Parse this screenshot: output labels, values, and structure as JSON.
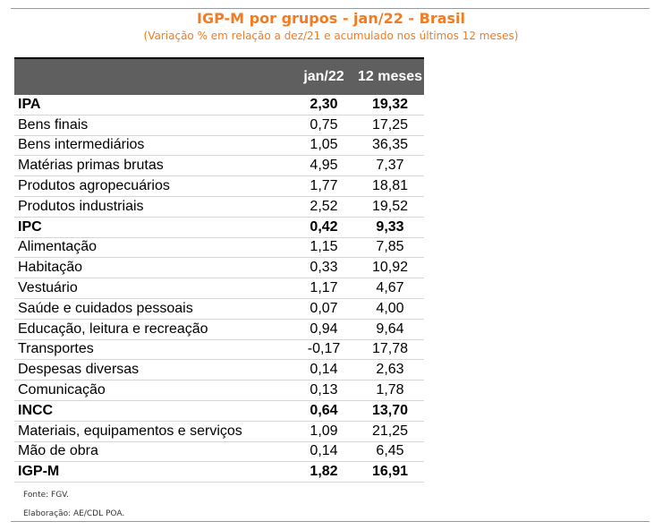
{
  "header": {
    "title": "IGP-M por grupos - jan/22 - Brasil",
    "subtitle": "(Variação % em relação a dez/21 e acumulado nos últimos 12 meses)"
  },
  "table": {
    "columns": [
      "",
      "jan/22",
      "12 meses"
    ],
    "rows": [
      {
        "label": "IPA",
        "jan22": "2,30",
        "m12": "19,32",
        "group": true
      },
      {
        "label": "Bens finais",
        "jan22": "0,75",
        "m12": "17,25",
        "group": false
      },
      {
        "label": "Bens intermediários",
        "jan22": "1,05",
        "m12": "36,35",
        "group": false
      },
      {
        "label": "Matérias primas brutas",
        "jan22": "4,95",
        "m12": "7,37",
        "group": false
      },
      {
        "label": "Produtos agropecuários",
        "jan22": "1,77",
        "m12": "18,81",
        "group": false
      },
      {
        "label": "Produtos industriais",
        "jan22": "2,52",
        "m12": "19,52",
        "group": false
      },
      {
        "label": "IPC",
        "jan22": "0,42",
        "m12": "9,33",
        "group": true
      },
      {
        "label": "Alimentação",
        "jan22": "1,15",
        "m12": "7,85",
        "group": false
      },
      {
        "label": "Habitação",
        "jan22": "0,33",
        "m12": "10,92",
        "group": false
      },
      {
        "label": "Vestuário",
        "jan22": "1,17",
        "m12": "4,67",
        "group": false
      },
      {
        "label": "Saúde e cuidados pessoais",
        "jan22": "0,07",
        "m12": "4,00",
        "group": false
      },
      {
        "label": "Educação, leitura e recreação",
        "jan22": "0,94",
        "m12": "9,64",
        "group": false
      },
      {
        "label": "Transportes",
        "jan22": "-0,17",
        "m12": "17,78",
        "group": false
      },
      {
        "label": "Despesas diversas",
        "jan22": "0,14",
        "m12": "2,63",
        "group": false
      },
      {
        "label": "Comunicação",
        "jan22": "0,13",
        "m12": "1,78",
        "group": false
      },
      {
        "label": "INCC",
        "jan22": "0,64",
        "m12": "13,70",
        "group": true
      },
      {
        "label": "Materiais, equipamentos e serviços",
        "jan22": "1,09",
        "m12": "21,25",
        "group": false
      },
      {
        "label": "Mão de obra",
        "jan22": "0,14",
        "m12": "6,45",
        "group": false
      },
      {
        "label": "IGP-M",
        "jan22": "1,82",
        "m12": "16,91",
        "group": true
      }
    ]
  },
  "footer": {
    "source": "Fonte: FGV.",
    "credit": "Elaboração: AE/CDL POA."
  },
  "colors": {
    "accent": "#f47b20",
    "header_bg": "#5f5f5f"
  }
}
